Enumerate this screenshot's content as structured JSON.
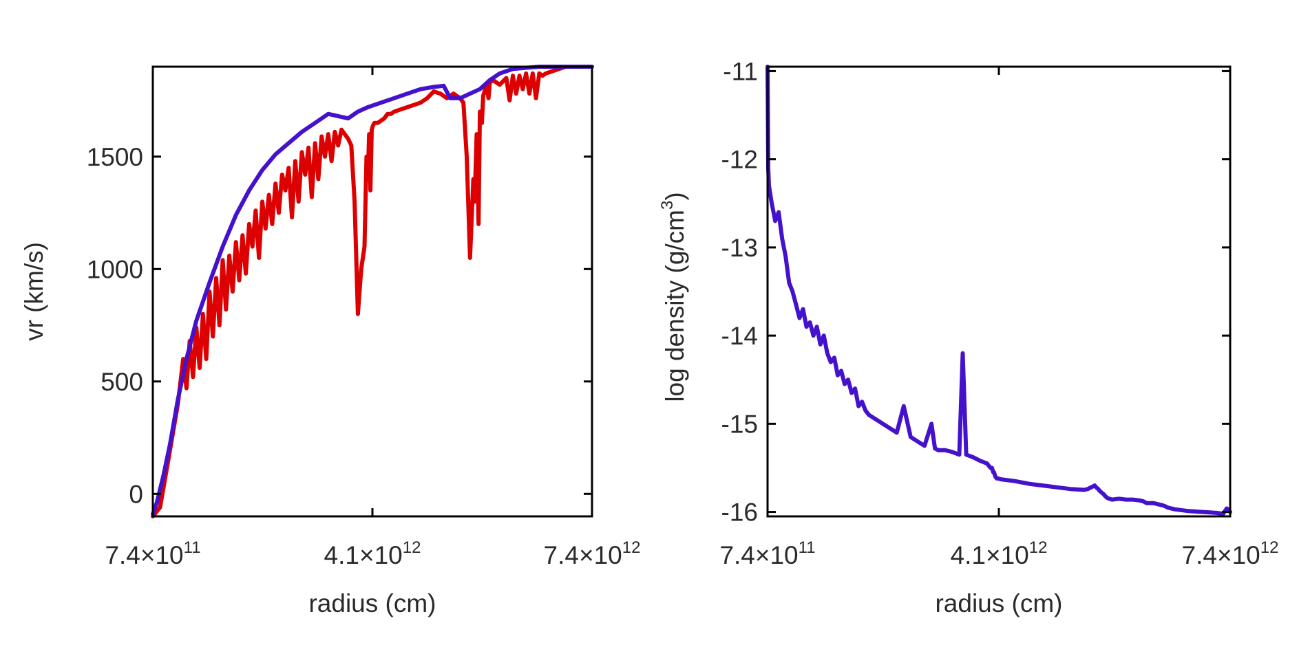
{
  "chart_data": [
    {
      "type": "line",
      "xlabel": "radius (cm)",
      "ylabel": "vr (km/s)",
      "xlim": [
        740000000000.0,
        7400000000000.0
      ],
      "ylim": [
        -100,
        1900
      ],
      "xtick_labels": [
        {
          "mant": "7.4",
          "exp": "11"
        },
        {
          "mant": "4.1",
          "exp": "12"
        },
        {
          "mant": "7.4",
          "exp": "12"
        }
      ],
      "x_ticks": [
        740000000000.0,
        4070000000000.0,
        7400000000000.0
      ],
      "y_ticks": [
        0,
        500,
        1000,
        1500
      ],
      "ytick_labels": [
        "0",
        "500",
        "1000",
        "1500"
      ],
      "series": [
        {
          "name": "vr-red",
          "color": "#dd0000",
          "x": [
            740000000000.0,
            850000000000.0,
            980000000000.0,
            1120000000000.0,
            1200000000000.0,
            1250000000000.0,
            1300000000000.0,
            1350000000000.0,
            1400000000000.0,
            1450000000000.0,
            1500000000000.0,
            1550000000000.0,
            1600000000000.0,
            1650000000000.0,
            1700000000000.0,
            1750000000000.0,
            1800000000000.0,
            1850000000000.0,
            1900000000000.0,
            1950000000000.0,
            2000000000000.0,
            2050000000000.0,
            2100000000000.0,
            2150000000000.0,
            2200000000000.0,
            2250000000000.0,
            2300000000000.0,
            2350000000000.0,
            2400000000000.0,
            2450000000000.0,
            2500000000000.0,
            2550000000000.0,
            2600000000000.0,
            2650000000000.0,
            2700000000000.0,
            2750000000000.0,
            2800000000000.0,
            2850000000000.0,
            2900000000000.0,
            2950000000000.0,
            3000000000000.0,
            3050000000000.0,
            3100000000000.0,
            3150000000000.0,
            3200000000000.0,
            3250000000000.0,
            3300000000000.0,
            3350000000000.0,
            3400000000000.0,
            3450000000000.0,
            3500000000000.0,
            3550000000000.0,
            3600000000000.0,
            3650000000000.0,
            3700000000000.0,
            3750000000000.0,
            3800000000000.0,
            3850000000000.0,
            3900000000000.0,
            3950000000000.0,
            3980000000000.0,
            4000000000000.0,
            4020000000000.0,
            4040000000000.0,
            4060000000000.0,
            4080000000000.0,
            4100000000000.0,
            4150000000000.0,
            4200000000000.0,
            4250000000000.0,
            4300000000000.0,
            4350000000000.0,
            4400000000000.0,
            4500000000000.0,
            4600000000000.0,
            4700000000000.0,
            4800000000000.0,
            4900000000000.0,
            5000000000000.0,
            5100000000000.0,
            5200000000000.0,
            5300000000000.0,
            5400000000000.0,
            5450000000000.0,
            5500000000000.0,
            5550000000000.0,
            5600000000000.0,
            5620000000000.0,
            5650000000000.0,
            5680000000000.0,
            5700000000000.0,
            5730000000000.0,
            5750000000000.0,
            5780000000000.0,
            5800000000000.0,
            5830000000000.0,
            5850000000000.0,
            5900000000000.0,
            6000000000000.0,
            6100000000000.0,
            6150000000000.0,
            6200000000000.0,
            6250000000000.0,
            6300000000000.0,
            6350000000000.0,
            6400000000000.0,
            6450000000000.0,
            6500000000000.0,
            6550000000000.0,
            6600000000000.0,
            6650000000000.0,
            6700000000000.0,
            6800000000000.0,
            6900000000000.0,
            7000000000000.0,
            7100000000000.0,
            7200000000000.0,
            7300000000000.0,
            7400000000000.0
          ],
          "y": [
            -100,
            -60,
            160,
            400,
            600,
            470,
            680,
            520,
            740,
            560,
            800,
            600,
            900,
            700,
            960,
            750,
            1040,
            820,
            1060,
            900,
            1120,
            950,
            1150,
            980,
            1200,
            1100,
            1260,
            1050,
            1300,
            1180,
            1330,
            1200,
            1380,
            1250,
            1420,
            1350,
            1450,
            1230,
            1480,
            1300,
            1520,
            1420,
            1540,
            1320,
            1560,
            1400,
            1590,
            1500,
            1600,
            1480,
            1610,
            1550,
            1620,
            1600,
            1580,
            1550,
            1300,
            800,
            1000,
            1100,
            1500,
            1400,
            1600,
            1350,
            1620,
            1640,
            1650,
            1650,
            1660,
            1670,
            1690,
            1690,
            1700,
            1710,
            1720,
            1730,
            1740,
            1760,
            1790,
            1780,
            1760,
            1780,
            1760,
            1740,
            1500,
            1050,
            1400,
            1300,
            1600,
            1200,
            1700,
            1650,
            1770,
            1800,
            1820,
            1760,
            1830,
            1840,
            1820,
            1850,
            1750,
            1860,
            1780,
            1860,
            1800,
            1870,
            1780,
            1870,
            1760,
            1870,
            1860,
            1870,
            1880,
            1890,
            1900,
            1905,
            1910,
            1920,
            1930
          ]
        },
        {
          "name": "vr-blue",
          "color": "#4411cc",
          "x": [
            740000000000.0,
            800000000000.0,
            900000000000.0,
            1000000000000.0,
            1120000000000.0,
            1250000000000.0,
            1400000000000.0,
            1600000000000.0,
            1800000000000.0,
            2000000000000.0,
            2200000000000.0,
            2400000000000.0,
            2600000000000.0,
            2800000000000.0,
            3000000000000.0,
            3200000000000.0,
            3400000000000.0,
            3550000000000.0,
            3700000000000.0,
            3850000000000.0,
            4000000000000.0,
            4200000000000.0,
            4400000000000.0,
            4600000000000.0,
            4800000000000.0,
            5000000000000.0,
            5150000000000.0,
            5250000000000.0,
            5400000000000.0,
            5550000000000.0,
            5700000000000.0,
            5850000000000.0,
            6000000000000.0,
            6200000000000.0,
            6400000000000.0,
            6600000000000.0,
            6800000000000.0,
            7000000000000.0,
            7200000000000.0,
            7400000000000.0
          ],
          "y": [
            -90,
            -40,
            80,
            220,
            420,
            600,
            770,
            940,
            1100,
            1240,
            1350,
            1440,
            1510,
            1560,
            1610,
            1650,
            1690,
            1680,
            1670,
            1700,
            1720,
            1740,
            1760,
            1780,
            1800,
            1810,
            1815,
            1760,
            1760,
            1780,
            1800,
            1840,
            1870,
            1890,
            1895,
            1900,
            1910,
            1915,
            1920,
            1930
          ]
        }
      ]
    },
    {
      "type": "line",
      "xlabel": "radius (cm)",
      "ylabel_main": "log density (g/cm",
      "ylabel_sup": "3",
      "ylabel_close": ")",
      "xlim": [
        740000000000.0,
        7400000000000.0
      ],
      "ylim": [
        -16.05,
        -10.95
      ],
      "xtick_labels": [
        {
          "mant": "7.4",
          "exp": "11"
        },
        {
          "mant": "4.1",
          "exp": "12"
        },
        {
          "mant": "7.4",
          "exp": "12"
        }
      ],
      "x_ticks": [
        740000000000.0,
        4070000000000.0,
        7400000000000.0
      ],
      "y_ticks": [
        -16,
        -15,
        -14,
        -13,
        -12,
        -11
      ],
      "ytick_labels": [
        "-16",
        "-15",
        "-14",
        "-13",
        "-12",
        "-11"
      ],
      "series": [
        {
          "name": "log-density",
          "color": "#4411cc",
          "x": [
            740000000000.0,
            745000000000.0,
            750000000000.0,
            760000000000.0,
            800000000000.0,
            850000000000.0,
            900000000000.0,
            950000000000.0,
            1000000000000.0,
            1050000000000.0,
            1100000000000.0,
            1150000000000.0,
            1200000000000.0,
            1250000000000.0,
            1300000000000.0,
            1350000000000.0,
            1400000000000.0,
            1450000000000.0,
            1500000000000.0,
            1550000000000.0,
            1600000000000.0,
            1650000000000.0,
            1700000000000.0,
            1750000000000.0,
            1800000000000.0,
            1850000000000.0,
            1900000000000.0,
            1950000000000.0,
            2000000000000.0,
            2050000000000.0,
            2100000000000.0,
            2150000000000.0,
            2200000000000.0,
            2300000000000.0,
            2400000000000.0,
            2500000000000.0,
            2600000000000.0,
            2700000000000.0,
            2800000000000.0,
            2900000000000.0,
            3000000000000.0,
            3100000000000.0,
            3150000000000.0,
            3200000000000.0,
            3300000000000.0,
            3400000000000.0,
            3500000000000.0,
            3550000000000.0,
            3600000000000.0,
            3700000000000.0,
            3800000000000.0,
            3900000000000.0,
            3950000000000.0,
            3970000000000.0,
            3990000000000.0,
            4000000000000.0,
            4020000000000.0,
            4040000000000.0,
            4060000000000.0,
            4100000000000.0,
            4300000000000.0,
            4500000000000.0,
            4700000000000.0,
            4900000000000.0,
            5100000000000.0,
            5300000000000.0,
            5350000000000.0,
            5400000000000.0,
            5450000000000.0,
            5470000000000.0,
            5500000000000.0,
            5520000000000.0,
            5550000000000.0,
            5580000000000.0,
            5600000000000.0,
            5630000000000.0,
            5660000000000.0,
            5700000000000.0,
            5800000000000.0,
            5900000000000.0,
            6000000000000.0,
            6100000000000.0,
            6150000000000.0,
            6200000000000.0,
            6300000000000.0,
            6400000000000.0,
            6450000000000.0,
            6500000000000.0,
            6600000000000.0,
            6800000000000.0,
            7000000000000.0,
            7200000000000.0,
            7300000000000.0,
            7350000000000.0,
            7400000000000.0
          ],
          "y": [
            -10.9,
            -11.5,
            -12.1,
            -12.3,
            -12.5,
            -12.7,
            -12.6,
            -12.9,
            -13.1,
            -13.4,
            -13.5,
            -13.65,
            -13.8,
            -13.7,
            -13.9,
            -13.85,
            -14.0,
            -13.9,
            -14.1,
            -14.0,
            -14.2,
            -14.3,
            -14.25,
            -14.45,
            -14.4,
            -14.55,
            -14.5,
            -14.65,
            -14.6,
            -14.8,
            -14.75,
            -14.85,
            -14.9,
            -14.95,
            -15.0,
            -15.05,
            -15.1,
            -14.8,
            -15.15,
            -15.2,
            -15.25,
            -15.0,
            -15.28,
            -15.3,
            -15.3,
            -15.32,
            -15.35,
            -14.2,
            -15.35,
            -15.38,
            -15.42,
            -15.45,
            -15.5,
            -15.5,
            -15.55,
            -15.55,
            -15.6,
            -15.62,
            -15.62,
            -15.63,
            -15.65,
            -15.68,
            -15.7,
            -15.72,
            -15.74,
            -15.75,
            -15.74,
            -15.72,
            -15.7,
            -15.72,
            -15.74,
            -15.76,
            -15.78,
            -15.8,
            -15.82,
            -15.84,
            -15.85,
            -15.86,
            -15.85,
            -15.86,
            -15.86,
            -15.87,
            -15.88,
            -15.9,
            -15.9,
            -15.92,
            -15.93,
            -15.95,
            -15.97,
            -15.99,
            -16.0,
            -16.01,
            -16.02,
            -15.96,
            -16.0
          ]
        }
      ]
    }
  ]
}
